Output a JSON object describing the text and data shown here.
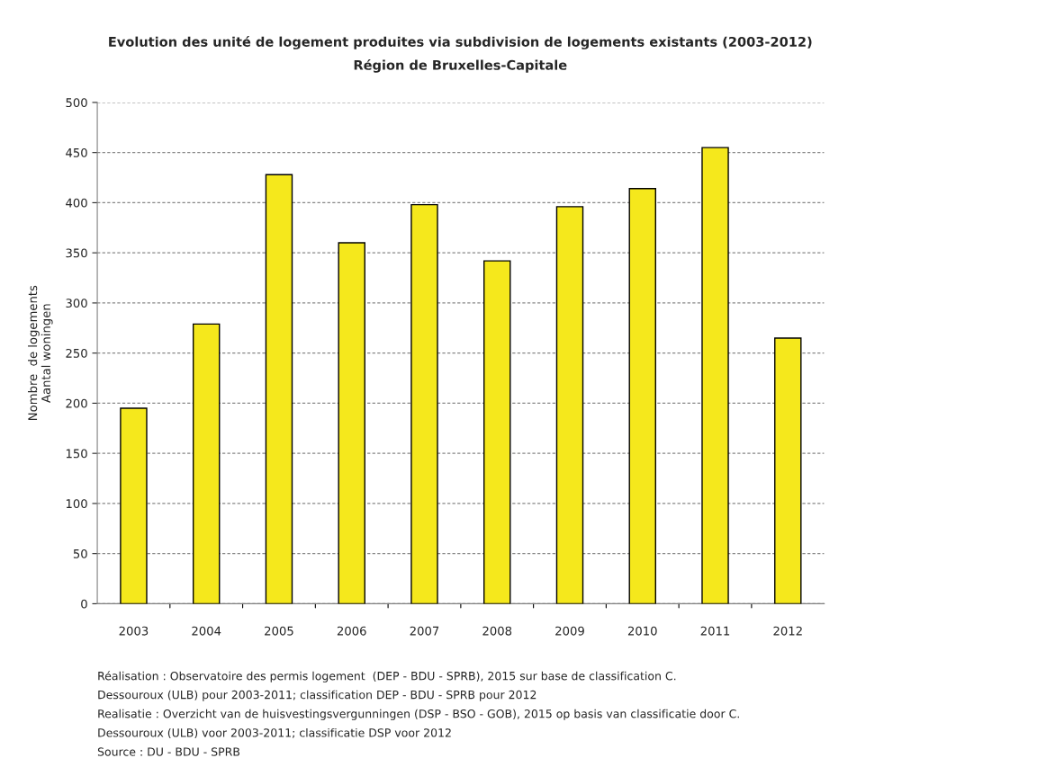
{
  "chart_data": {
    "type": "bar",
    "title": "Evolution des unité de logement produites via subdivision de logements existants (2003-2012)",
    "subtitle": "Région de Bruxelles-Capitale",
    "ylabel": "Nombre  de logements\nAantal woningen",
    "categories": [
      "2003",
      "2004",
      "2005",
      "2006",
      "2007",
      "2008",
      "2009",
      "2010",
      "2011",
      "2012"
    ],
    "values": [
      195,
      279,
      428,
      360,
      398,
      342,
      396,
      414,
      455,
      265
    ],
    "color": "#f5e81c",
    "ylim": [
      0,
      500
    ],
    "yticks": [
      0,
      50,
      100,
      150,
      200,
      250,
      300,
      350,
      400,
      450,
      500
    ],
    "grid": "y",
    "annotations": [
      "Réalisation : Observatoire des permis logement  (DEP - BDU - SPRB), 2015 sur base de classification C.",
      "Dessouroux (ULB) pour 2003-2011; classification DEP - BDU - SPRB pour 2012",
      "Realisatie : Overzicht van de huisvestingsvergunningen (DSP - BSO - GOB), 2015 op basis van classificatie door C.",
      "Dessouroux (ULB) voor 2003-2011; classificatie DSP voor 2012",
      "Source : DU - BDU - SPRB"
    ]
  }
}
